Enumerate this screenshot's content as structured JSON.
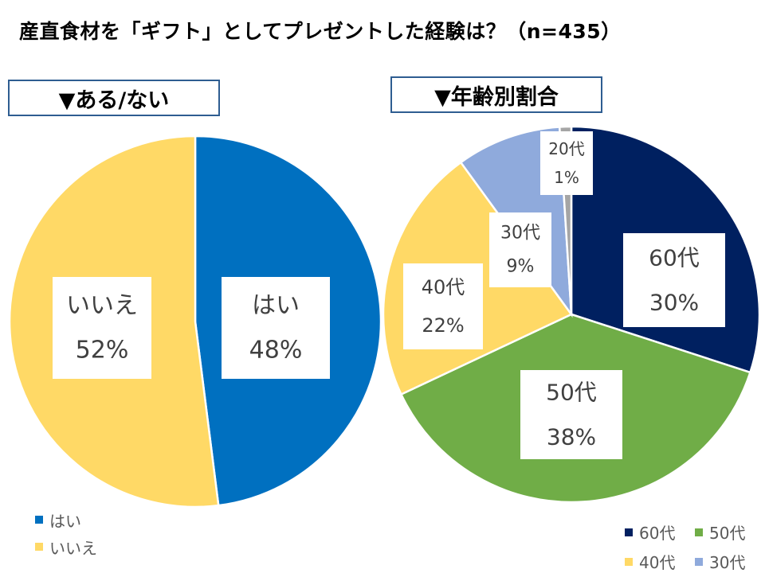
{
  "title": "産直食材を「ギフト」としてプレゼントした経験は？（n=435）",
  "chart_data": [
    {
      "type": "pie",
      "section_label": "▼ある/ない",
      "slices": [
        {
          "label": "はい",
          "value": 48,
          "display": "48%",
          "color": "#0070c0"
        },
        {
          "label": "いいえ",
          "value": 52,
          "display": "52%",
          "color": "#ffd966"
        }
      ],
      "legend": [
        {
          "label": "はい",
          "color": "#0070c0"
        },
        {
          "label": "いいえ",
          "color": "#ffd966"
        }
      ]
    },
    {
      "type": "pie",
      "section_label": "▼年齢別割合",
      "slices": [
        {
          "label": "60代",
          "value": 30,
          "display": "30%",
          "color": "#002060"
        },
        {
          "label": "50代",
          "value": 38,
          "display": "38%",
          "color": "#70ad47"
        },
        {
          "label": "40代",
          "value": 22,
          "display": "22%",
          "color": "#ffd966"
        },
        {
          "label": "30代",
          "value": 9,
          "display": "9%",
          "color": "#8faadc"
        },
        {
          "label": "20代",
          "value": 1,
          "display": "1%",
          "color": "#a5a5a5"
        }
      ],
      "legend": [
        {
          "label": "60代",
          "color": "#002060"
        },
        {
          "label": "50代",
          "color": "#70ad47"
        },
        {
          "label": "40代",
          "color": "#ffd966"
        },
        {
          "label": "30代",
          "color": "#8faadc"
        }
      ]
    }
  ]
}
